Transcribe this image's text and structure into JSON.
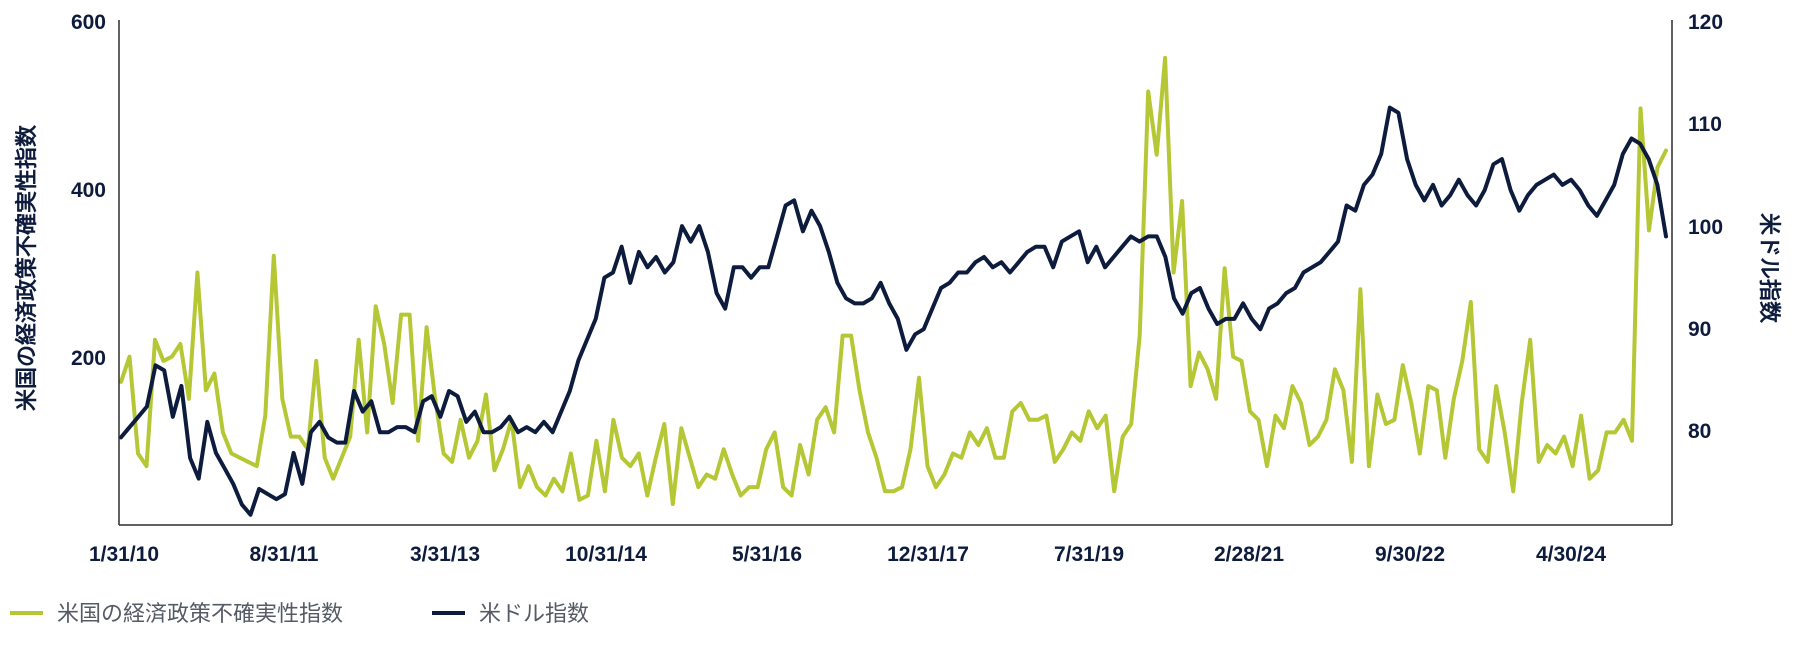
{
  "chart_data": {
    "type": "line",
    "x_labels": [
      "1/31/10",
      "8/31/11",
      "3/31/13",
      "10/31/14",
      "5/31/16",
      "12/31/17",
      "7/31/19",
      "2/28/21",
      "9/30/22",
      "4/30/24"
    ],
    "y_left": {
      "label": "米国の経済政策不確実性指数",
      "ticks": [
        "600",
        "400",
        "200"
      ],
      "lim": [
        0,
        600
      ]
    },
    "y_right": {
      "label": "米ドル指数",
      "ticks": [
        "120",
        "110",
        "100",
        "90",
        "80"
      ],
      "lim": [
        71,
        120
      ]
    },
    "legend_position": "bottom-left",
    "series": [
      {
        "name": "米国の経済政策不確実性指数",
        "axis": "left",
        "color": "#b5c734",
        "values": [
          170,
          200,
          85,
          70,
          220,
          195,
          200,
          215,
          150,
          300,
          160,
          180,
          110,
          85,
          80,
          75,
          70,
          130,
          320,
          150,
          105,
          105,
          90,
          195,
          80,
          55,
          80,
          105,
          220,
          110,
          260,
          215,
          145,
          250,
          250,
          100,
          235,
          150,
          85,
          75,
          125,
          80,
          100,
          155,
          65,
          90,
          125,
          45,
          70,
          45,
          35,
          55,
          40,
          85,
          30,
          35,
          100,
          40,
          125,
          80,
          70,
          85,
          35,
          80,
          120,
          25,
          115,
          80,
          45,
          60,
          55,
          90,
          60,
          35,
          45,
          45,
          90,
          110,
          45,
          35,
          95,
          60,
          125,
          140,
          110,
          225,
          225,
          160,
          110,
          80,
          40,
          40,
          45,
          90,
          175,
          70,
          45,
          60,
          85,
          80,
          110,
          95,
          115,
          80,
          80,
          135,
          145,
          125,
          125,
          130,
          75,
          90,
          110,
          100,
          135,
          115,
          130,
          40,
          105,
          120,
          225,
          515,
          440,
          555,
          300,
          385,
          165,
          205,
          185,
          150,
          305,
          200,
          195,
          135,
          125,
          70,
          130,
          115,
          165,
          145,
          95,
          105,
          125,
          185,
          160,
          75,
          280,
          70,
          155,
          120,
          125,
          190,
          145,
          85,
          165,
          160,
          80,
          150,
          195,
          265,
          90,
          75,
          165,
          110,
          40,
          145,
          220,
          75,
          95,
          85,
          105,
          70,
          130,
          55,
          65,
          110,
          110,
          125,
          100,
          495,
          350,
          425,
          445
        ]
      },
      {
        "name": "米ドル指数",
        "axis": "right",
        "color": "#0d1b3d",
        "values": [
          79.5,
          80.5,
          81.5,
          82.5,
          86.5,
          86.0,
          81.5,
          84.5,
          77.5,
          75.5,
          81.0,
          78.0,
          76.5,
          75.0,
          73.0,
          72.0,
          74.5,
          74.0,
          73.5,
          74.0,
          78.0,
          75.0,
          80.0,
          81.0,
          79.5,
          79.0,
          79.0,
          84.0,
          82.0,
          83.0,
          80.0,
          80.0,
          80.5,
          80.5,
          80.0,
          83.0,
          83.5,
          81.5,
          84.0,
          83.5,
          81.0,
          82.0,
          80.0,
          80.0,
          80.5,
          81.5,
          80.0,
          80.5,
          80.0,
          81.0,
          80.0,
          82.0,
          84.0,
          87.0,
          89.0,
          91.0,
          95.0,
          95.5,
          98.0,
          94.5,
          97.5,
          96.0,
          97.0,
          95.5,
          96.5,
          100.0,
          98.5,
          100.0,
          97.5,
          93.5,
          92.0,
          96.0,
          96.0,
          95.0,
          96.0,
          96.0,
          99.0,
          102.0,
          102.5,
          99.5,
          101.5,
          100.0,
          97.5,
          94.5,
          93.0,
          92.5,
          92.5,
          93.0,
          94.5,
          92.5,
          91.0,
          88.0,
          89.5,
          90.0,
          92.0,
          94.0,
          94.5,
          95.5,
          95.5,
          96.5,
          97.0,
          96.0,
          96.5,
          95.5,
          96.5,
          97.5,
          98.0,
          98.0,
          96.0,
          98.5,
          99.0,
          99.5,
          96.5,
          98.0,
          96.0,
          97.0,
          98.0,
          99.0,
          98.5,
          99.0,
          99.0,
          97.0,
          93.0,
          91.5,
          93.5,
          94.0,
          92.0,
          90.5,
          91.0,
          91.0,
          92.5,
          91.0,
          90.0,
          92.0,
          92.5,
          93.5,
          94.0,
          95.5,
          96.0,
          96.5,
          97.5,
          98.5,
          102.0,
          101.5,
          104.0,
          105.0,
          107.0,
          111.5,
          111.0,
          106.5,
          104.0,
          102.5,
          104.0,
          102.0,
          103.0,
          104.5,
          103.0,
          102.0,
          103.5,
          106.0,
          106.5,
          103.5,
          101.5,
          103.0,
          104.0,
          104.5,
          105.0,
          104.0,
          104.5,
          103.5,
          102.0,
          101.0,
          102.5,
          104.0,
          107.0,
          108.5,
          108.0,
          106.5,
          104.0,
          99.0
        ]
      }
    ]
  }
}
